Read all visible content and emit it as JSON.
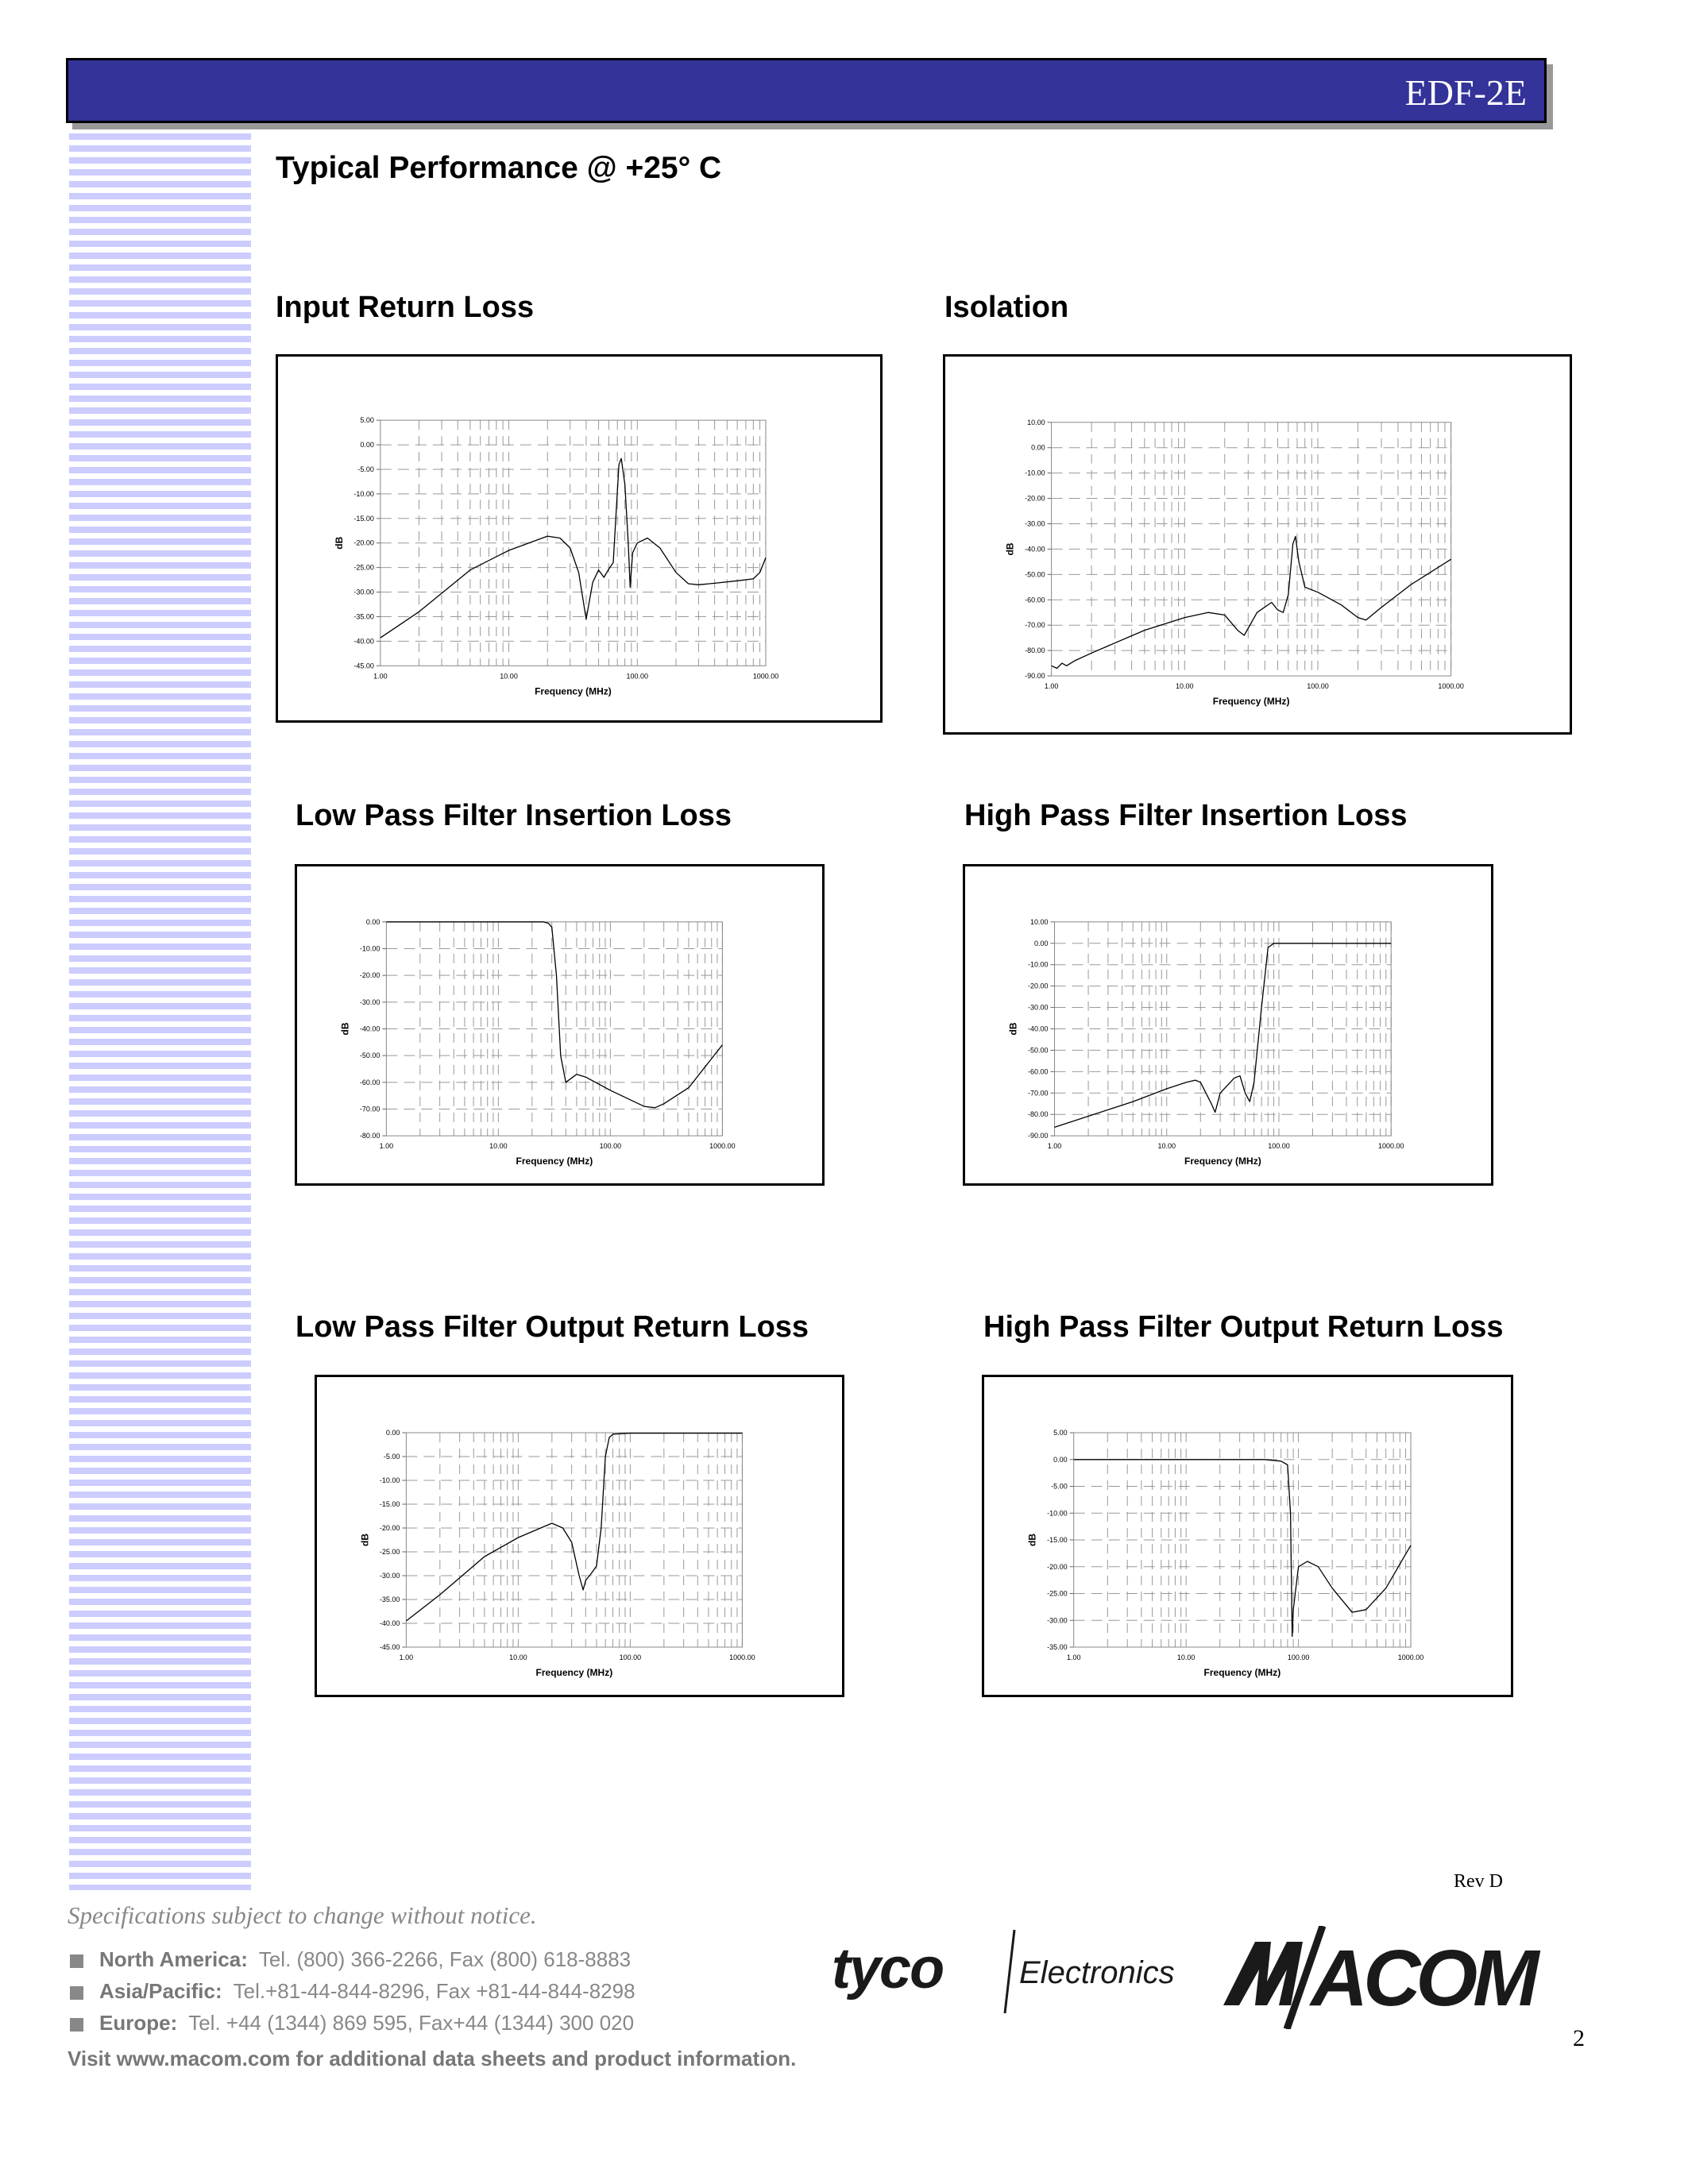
{
  "header": {
    "product": "EDF-2E",
    "bar_color": "#333399"
  },
  "page_title": "Typical Performance @ +25° C",
  "charts": [
    {
      "title": "Input Return Loss"
    },
    {
      "title": "Isolation"
    },
    {
      "title": "Low Pass Filter Insertion Loss"
    },
    {
      "title": "High Pass Filter Insertion Loss"
    },
    {
      "title": "Low Pass Filter Output Return Loss"
    },
    {
      "title": "High Pass Filter Output Return Loss"
    }
  ],
  "chart_data": [
    {
      "type": "line",
      "title": "Input Return Loss",
      "xlabel": "Frequency (MHz)",
      "ylabel": "dB",
      "xscale": "log",
      "xlim": [
        1,
        1000
      ],
      "ylim": [
        -45,
        5
      ],
      "ystep": 5,
      "grid": true,
      "xticks": [
        "1.00",
        "10.00",
        "100.00",
        "1000.00"
      ],
      "series": [
        {
          "x": [
            1,
            2,
            5,
            10,
            20,
            25,
            30,
            35,
            40,
            45,
            50,
            55,
            60,
            65,
            68,
            72,
            75,
            80,
            85,
            88,
            92,
            100,
            120,
            150,
            200,
            250,
            300,
            400,
            600,
            800,
            900,
            1000
          ],
          "y": [
            -39.3,
            -34,
            -25.5,
            -21.5,
            -18.6,
            -19,
            -21,
            -26,
            -35.5,
            -28,
            -25.5,
            -27,
            -25.3,
            -24,
            -15,
            -4,
            -2.8,
            -8,
            -20,
            -29,
            -22,
            -20,
            -19,
            -21,
            -26,
            -28.3,
            -28.5,
            -28.2,
            -27.7,
            -27.3,
            -26,
            -23
          ]
        }
      ]
    },
    {
      "type": "line",
      "title": "Isolation",
      "xlabel": "Frequency (MHz)",
      "ylabel": "dB",
      "xscale": "log",
      "xlim": [
        1,
        1000
      ],
      "ylim": [
        -90,
        10
      ],
      "ystep": 10,
      "grid": true,
      "xticks": [
        "1.00",
        "10.00",
        "100.00",
        "1000.00"
      ],
      "series": [
        {
          "x": [
            1,
            1.1,
            1.2,
            1.3,
            1.5,
            2,
            5,
            10,
            15,
            20,
            25,
            28,
            35,
            45,
            50,
            55,
            60,
            65,
            68,
            72,
            80,
            100,
            150,
            200,
            230,
            300,
            500,
            1000
          ],
          "y": [
            -86,
            -87,
            -85,
            -86,
            -84,
            -81,
            -72,
            -67,
            -65,
            -66,
            -72,
            -74,
            -65,
            -61,
            -64,
            -65,
            -58,
            -38,
            -35,
            -45,
            -55,
            -57,
            -62,
            -67,
            -68,
            -63,
            -54,
            -44
          ]
        }
      ]
    },
    {
      "type": "line",
      "title": "Low Pass Filter Insertion Loss",
      "xlabel": "Frequency (MHz)",
      "ylabel": "dB",
      "xscale": "log",
      "xlim": [
        1,
        1000
      ],
      "ylim": [
        -80,
        0
      ],
      "ystep": 10,
      "grid": true,
      "xticks": [
        "1.00",
        "10.00",
        "100.00",
        "1000.00"
      ],
      "series": [
        {
          "x": [
            1,
            10,
            20,
            25,
            28,
            30,
            33,
            36,
            40,
            50,
            60,
            100,
            200,
            250,
            300,
            500,
            1000
          ],
          "y": [
            0,
            0,
            0,
            0,
            -0.5,
            -2,
            -20,
            -50,
            -60,
            -57,
            -58,
            -63,
            -69,
            -69.5,
            -68,
            -62,
            -46
          ]
        }
      ]
    },
    {
      "type": "line",
      "title": "High Pass Filter Insertion Loss",
      "xlabel": "Frequency (MHz)",
      "ylabel": "dB",
      "xscale": "log",
      "xlim": [
        1,
        1000
      ],
      "ylim": [
        -90,
        10
      ],
      "ystep": 10,
      "grid": true,
      "xticks": [
        "1.00",
        "10.00",
        "100.00",
        "1000.00"
      ],
      "series": [
        {
          "x": [
            1,
            5,
            10,
            15,
            18,
            20,
            25,
            27,
            30,
            40,
            45,
            50,
            55,
            60,
            70,
            80,
            90,
            100,
            1000
          ],
          "y": [
            -86,
            -74,
            -68,
            -65,
            -64,
            -65,
            -75,
            -79,
            -70,
            -63,
            -62,
            -70,
            -74,
            -65,
            -30,
            -2,
            0,
            0,
            0
          ]
        }
      ]
    },
    {
      "type": "line",
      "title": "Low Pass Filter Output Return Loss",
      "xlabel": "Frequency (MHz)",
      "ylabel": "dB",
      "xscale": "log",
      "xlim": [
        1,
        1000
      ],
      "ylim": [
        -45,
        0
      ],
      "ystep": 5,
      "grid": true,
      "xticks": [
        "1.00",
        "10.00",
        "100.00",
        "1000.00"
      ],
      "series": [
        {
          "x": [
            1,
            2,
            5,
            10,
            20,
            25,
            30,
            35,
            38,
            40,
            45,
            50,
            55,
            60,
            65,
            70,
            100,
            1000
          ],
          "y": [
            -39.5,
            -34,
            -26,
            -22,
            -19,
            -20,
            -23,
            -30,
            -33,
            -31,
            -29.5,
            -28,
            -20,
            -5,
            -1,
            -0.3,
            -0.1,
            -0.1
          ]
        }
      ]
    },
    {
      "type": "line",
      "title": "High Pass Filter Output Return Loss",
      "xlabel": "Frequency (MHz)",
      "ylabel": "dB",
      "xscale": "log",
      "xlim": [
        1,
        1000
      ],
      "ylim": [
        -35,
        5
      ],
      "ystep": 5,
      "grid": true,
      "xticks": [
        "1.00",
        "10.00",
        "100.00",
        "1000.00"
      ],
      "series": [
        {
          "x": [
            1,
            10,
            50,
            70,
            80,
            85,
            88,
            90,
            100,
            120,
            150,
            200,
            300,
            400,
            600,
            1000
          ],
          "y": [
            0,
            0,
            0,
            -0.3,
            -1,
            -10,
            -33,
            -28,
            -20,
            -19,
            -20,
            -24,
            -28.5,
            -28,
            -24,
            -16
          ]
        }
      ]
    }
  ],
  "footer": {
    "rev": "Rev D",
    "disclaimer": "Specifications subject to change without notice.",
    "contacts": [
      {
        "region": "North America:",
        "details": "Tel. (800) 366-2266,  Fax (800) 618-8883"
      },
      {
        "region": "Asia/Pacific:",
        "details": "Tel.+81-44-844-8296,  Fax +81-44-844-8298"
      },
      {
        "region": "Europe:",
        "details": "Tel. +44 (1344) 869 595,  Fax+44 (1344) 300 020"
      }
    ],
    "visit": "Visit www.macom.com for additional data sheets and product information.",
    "logo_tyco": "tyco",
    "logo_tyco_sub": "Electronics",
    "logo_macom": "M/A-COM",
    "page_number": "2"
  }
}
